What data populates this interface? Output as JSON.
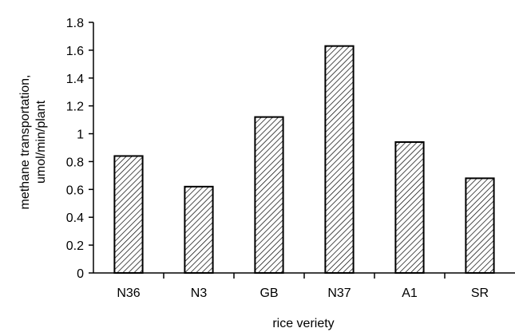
{
  "chart_data": {
    "type": "bar",
    "categories": [
      "N36",
      "N3",
      "GB",
      "N37",
      "A1",
      "SR"
    ],
    "values": [
      0.84,
      0.62,
      1.12,
      1.63,
      0.94,
      0.68
    ],
    "title": "",
    "xlabel": "rice veriety",
    "ylabel_lines": [
      "methane transportation,",
      "umol/min/plant"
    ],
    "ylim": [
      0,
      1.8
    ],
    "yticks": [
      "0",
      "0.2",
      "0.4",
      "0.6",
      "0.8",
      "1",
      "1.2",
      "1.4",
      "1.6",
      "1.8"
    ],
    "grid": false,
    "legend": "none",
    "bar_fill": "hatched-diagonal",
    "colors": {
      "bar_stroke": "#000000",
      "hatch": "#000000",
      "axis": "#000000",
      "background": "#ffffff"
    }
  }
}
